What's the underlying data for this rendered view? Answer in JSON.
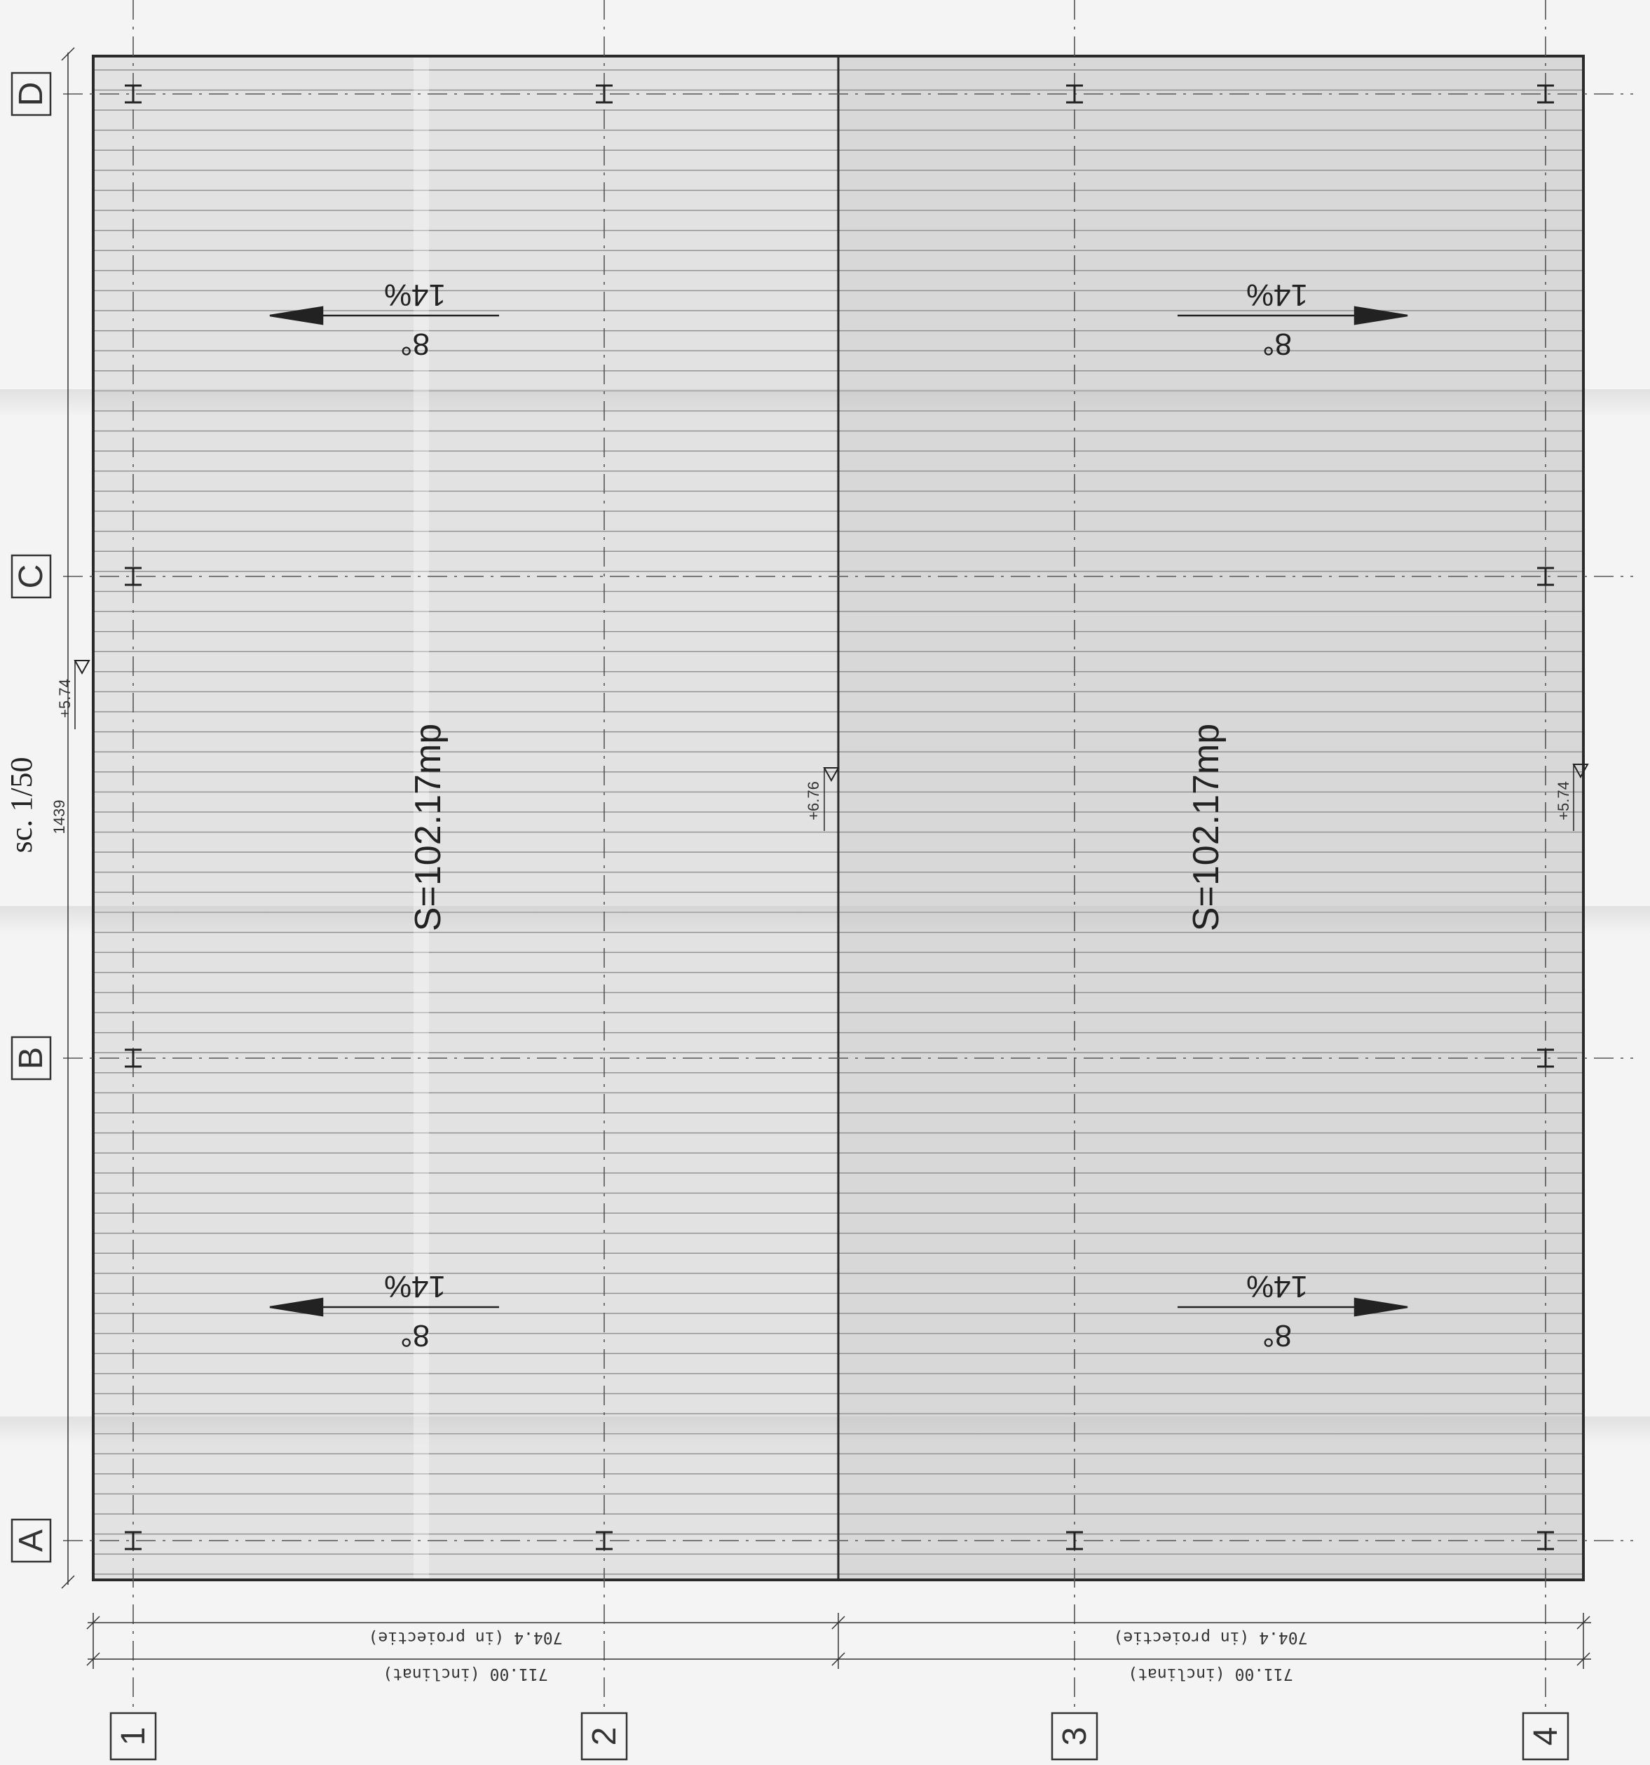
{
  "scale_label": "sc. 1/50",
  "overall_dim": "1439",
  "axes_rows": [
    "A",
    "B",
    "C",
    "D"
  ],
  "axes_cols": [
    "1",
    "2",
    "3",
    "4"
  ],
  "levels": {
    "left_edge": "+5.74",
    "ridge": "+6.76",
    "right_edge": "+5.74"
  },
  "areas": [
    "S=102.17mp",
    "S=102.17mp"
  ],
  "slopes": [
    {
      "degrees": "8°",
      "percent": "14%"
    },
    {
      "degrees": "8°",
      "percent": "14%"
    },
    {
      "degrees": "8°",
      "percent": "14%"
    },
    {
      "degrees": "8°",
      "percent": "14%"
    }
  ],
  "dims_projection": [
    "704.4  (in proiectie)",
    "704.4  (in proiectie)"
  ],
  "dims_inclined": [
    "711.00  (inclinat)",
    "711.00  (inclinat)"
  ]
}
